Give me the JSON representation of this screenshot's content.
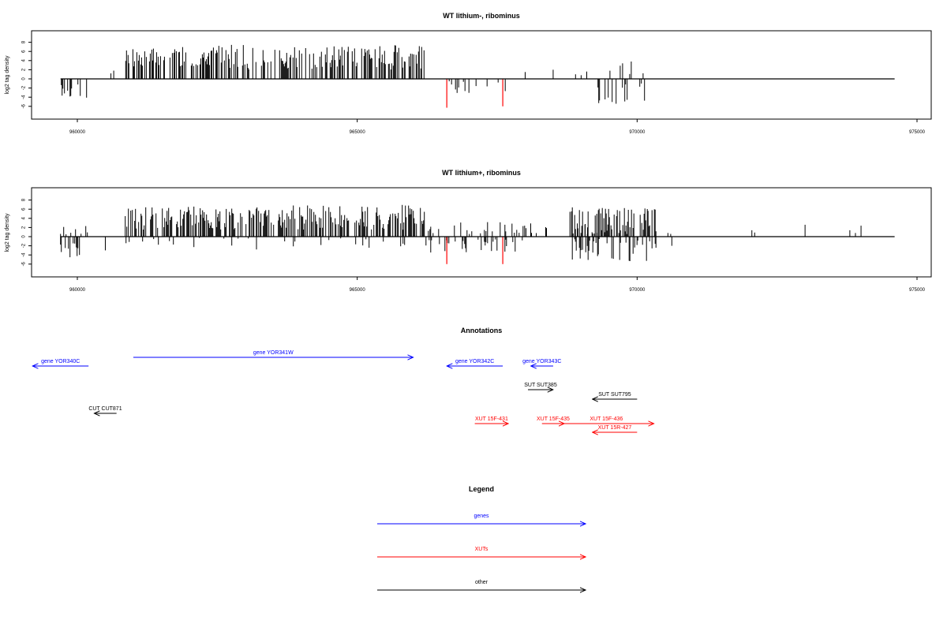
{
  "colors": {
    "gene": "#0000ff",
    "xut": "#ff0000",
    "other": "#000000",
    "highlight": "#ff0000",
    "bars": "#000000"
  },
  "chart_data": [
    {
      "type": "bar",
      "title": "WT lithium-, ribominus",
      "ylabel": "log2 tag density",
      "xlim": [
        959000,
        975500
      ],
      "ylim": [
        -6.5,
        8.5
      ],
      "x_ticks": [
        960000,
        965000,
        970000,
        975000
      ],
      "x_tick_labels": [
        "960000",
        "965000",
        "970000",
        "975000"
      ],
      "y_ticks": [
        8,
        6,
        4,
        2,
        0,
        -2,
        -4,
        -6
      ],
      "y_tick_labels": [
        "8",
        "6",
        "4",
        "2",
        "0",
        "-2",
        "-4",
        "-6"
      ],
      "baseline": {
        "from": 959700,
        "to": 974600
      },
      "segments": [
        {
          "from": 959700,
          "to": 960200,
          "sign": -1,
          "min": 1.0,
          "max": 4.5,
          "density": 0.09,
          "seed": 11
        },
        {
          "from": 960850,
          "to": 960950,
          "sign": 1,
          "min": 2.5,
          "max": 7.0,
          "density": 0.12,
          "seed": 12
        },
        {
          "from": 960950,
          "to": 962500,
          "sign": 1,
          "min": 2.5,
          "max": 7.0,
          "density": 0.12,
          "seed": 13
        },
        {
          "from": 962500,
          "to": 966200,
          "sign": 1,
          "min": 2.0,
          "max": 7.5,
          "density": 0.12,
          "seed": 14
        },
        {
          "from": 966600,
          "to": 967900,
          "sign": -1,
          "min": 0.5,
          "max": 3.2,
          "density": 0.03,
          "seed": 15
        },
        {
          "from": 969300,
          "to": 970300,
          "sign": -1,
          "min": 0.5,
          "max": 5.5,
          "density": 0.05,
          "seed": 16
        },
        {
          "from": 969500,
          "to": 970300,
          "sign": 1,
          "min": 0.5,
          "max": 3.8,
          "density": 0.03,
          "seed": 17
        }
      ],
      "points": [
        {
          "x": 960600,
          "y": 1.2
        },
        {
          "x": 960650,
          "y": 1.8
        },
        {
          "x": 968000,
          "y": 1.5
        },
        {
          "x": 968500,
          "y": 2.0
        },
        {
          "x": 968900,
          "y": 1.0
        },
        {
          "x": 969000,
          "y": 0.8
        },
        {
          "x": 969100,
          "y": 1.6
        }
      ],
      "highlights": [
        {
          "x": 966600,
          "y": -6.3
        },
        {
          "x": 967600,
          "y": -6.0
        }
      ]
    },
    {
      "type": "bar",
      "title": "WT lithium+, ribominus",
      "ylabel": "log2 tag density",
      "xlim": [
        959000,
        975500
      ],
      "ylim": [
        -6.5,
        8.5
      ],
      "x_ticks": [
        960000,
        965000,
        970000,
        975000
      ],
      "x_tick_labels": [
        "960000",
        "965000",
        "970000",
        "975000"
      ],
      "y_ticks": [
        8,
        6,
        4,
        2,
        0,
        -2,
        -4,
        -6
      ],
      "y_tick_labels": [
        "8",
        "6",
        "4",
        "2",
        "0",
        "-2",
        "-4",
        "-6"
      ],
      "baseline": {
        "from": 959700,
        "to": 974600
      },
      "segments": [
        {
          "from": 959700,
          "to": 960200,
          "sign": -1,
          "min": 0.8,
          "max": 4.5,
          "density": 0.09,
          "seed": 21
        },
        {
          "from": 959700,
          "to": 960200,
          "sign": 1,
          "min": 0.5,
          "max": 2.5,
          "density": 0.03,
          "seed": 22
        },
        {
          "from": 960800,
          "to": 966200,
          "sign": 1,
          "min": 1.5,
          "max": 7.0,
          "density": 0.13,
          "seed": 23
        },
        {
          "from": 960800,
          "to": 966200,
          "sign": -1,
          "min": 0.2,
          "max": 2.5,
          "density": 0.02,
          "seed": 24
        },
        {
          "from": 966200,
          "to": 968000,
          "sign": -1,
          "min": 0.5,
          "max": 3.5,
          "density": 0.06,
          "seed": 25
        },
        {
          "from": 966200,
          "to": 968000,
          "sign": 1,
          "min": 0.5,
          "max": 3.5,
          "density": 0.04,
          "seed": 26
        },
        {
          "from": 968000,
          "to": 969300,
          "sign": 1,
          "min": 0.5,
          "max": 3.0,
          "density": 0.03,
          "seed": 27
        },
        {
          "from": 968800,
          "to": 970350,
          "sign": 1,
          "min": 0.5,
          "max": 6.5,
          "density": 0.13,
          "seed": 28
        },
        {
          "from": 968800,
          "to": 970350,
          "sign": -1,
          "min": 0.5,
          "max": 5.5,
          "density": 0.1,
          "seed": 29
        }
      ],
      "points": [
        {
          "x": 960500,
          "y": -3.0
        },
        {
          "x": 963200,
          "y": -2.8
        },
        {
          "x": 970550,
          "y": 0.8
        },
        {
          "x": 970600,
          "y": 0.6
        },
        {
          "x": 970620,
          "y": -2.0
        },
        {
          "x": 972050,
          "y": 1.4
        },
        {
          "x": 972100,
          "y": 0.9
        },
        {
          "x": 973000,
          "y": 2.6
        },
        {
          "x": 973800,
          "y": 1.4
        },
        {
          "x": 973900,
          "y": 0.8
        },
        {
          "x": 974000,
          "y": 2.4
        }
      ],
      "highlights": [
        {
          "x": 966600,
          "y": -6.0
        },
        {
          "x": 967600,
          "y": -6.0
        }
      ]
    }
  ],
  "annotations": {
    "title": "Annotations",
    "items": [
      {
        "label": "gene YOR340C",
        "kind": "gene",
        "from": 960200,
        "to": 959200,
        "row": 1
      },
      {
        "label": "gene YOR341W",
        "kind": "gene",
        "from": 961000,
        "to": 966000,
        "row": 0
      },
      {
        "label": "gene YOR342C",
        "kind": "gene",
        "from": 967600,
        "to": 966600,
        "row": 1
      },
      {
        "label": "gene YOR343C",
        "kind": "gene",
        "from": 968500,
        "to": 968100,
        "row": 1
      },
      {
        "label": "SUT SUT385",
        "kind": "other",
        "from": 968050,
        "to": 968500,
        "row": 3
      },
      {
        "label": "SUT SUT795",
        "kind": "other",
        "from": 970000,
        "to": 969200,
        "row": 4
      },
      {
        "label": "CUT CUT871",
        "kind": "other",
        "from": 960700,
        "to": 960300,
        "row": 5
      },
      {
        "label": "XUT 15F-431",
        "kind": "xut",
        "from": 967100,
        "to": 967700,
        "row": 6
      },
      {
        "label": "XUT 15F-435",
        "kind": "xut",
        "from": 968300,
        "to": 968700,
        "row": 6
      },
      {
        "label": "XUT 15F-436",
        "kind": "xut",
        "from": 968600,
        "to": 970300,
        "row": 6
      },
      {
        "label": "XUT 15R-427",
        "kind": "xut",
        "from": 970000,
        "to": 969200,
        "row": 7
      }
    ]
  },
  "legend": {
    "title": "Legend",
    "items": [
      {
        "label": "genes",
        "kind": "gene"
      },
      {
        "label": "XUTs",
        "kind": "xut"
      },
      {
        "label": "other",
        "kind": "other"
      }
    ]
  }
}
